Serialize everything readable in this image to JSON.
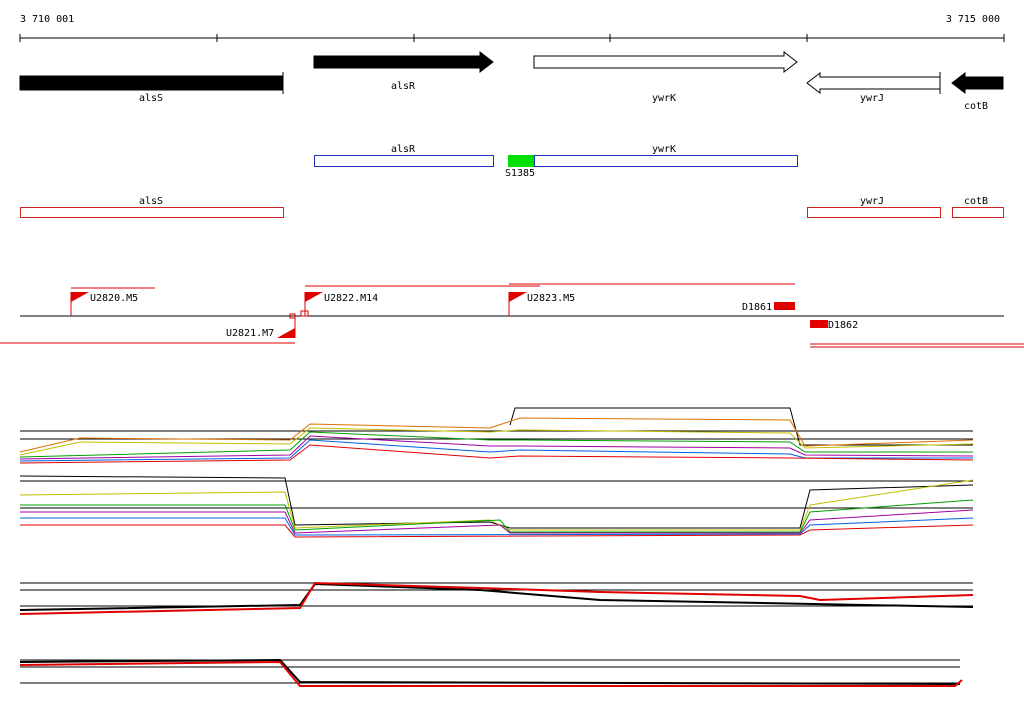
{
  "axis": {
    "start": "3 710 001",
    "end": "3 715 000"
  },
  "genes": [
    {
      "label": "alsS"
    },
    {
      "label": "alsR"
    },
    {
      "label": "ywrK"
    },
    {
      "label": "ywrJ"
    },
    {
      "label": "cotB"
    }
  ],
  "transcripts": [
    {
      "label": "alsR"
    },
    {
      "label": "ywrK"
    },
    {
      "label": "S1385"
    }
  ],
  "regions": [
    {
      "label": "alsS"
    },
    {
      "label": "ywrJ"
    },
    {
      "label": "cotB"
    }
  ],
  "promoters": [
    {
      "label": "U2820.M5"
    },
    {
      "label": "U2821.M7"
    },
    {
      "label": "U2822.M14"
    },
    {
      "label": "U2823.M5"
    },
    {
      "label": "D1861"
    },
    {
      "label": "D1862"
    }
  ]
}
